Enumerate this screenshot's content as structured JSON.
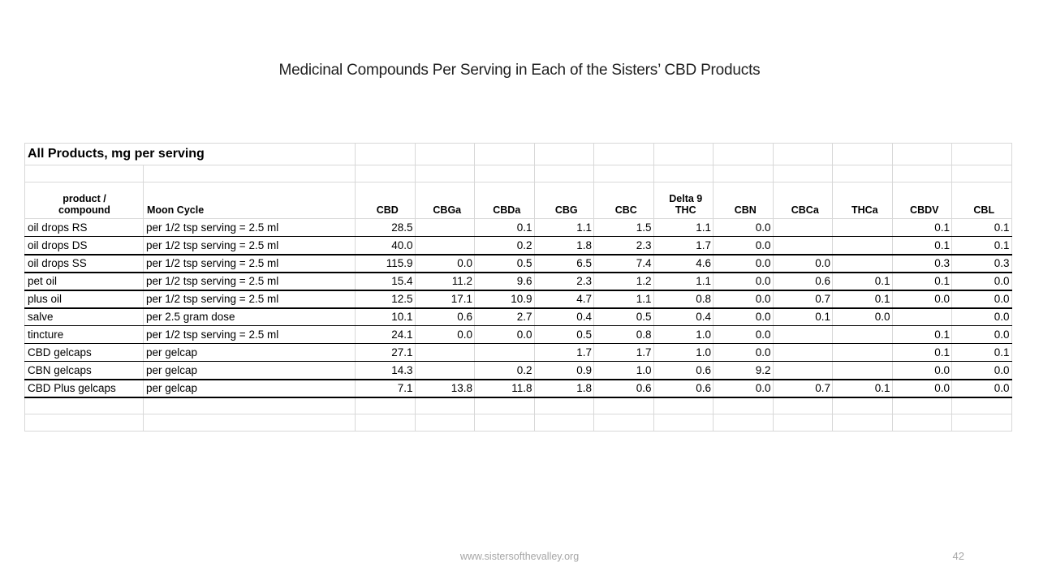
{
  "slide": {
    "title": "Medicinal Compounds Per Serving in Each of the Sisters’ CBD Products"
  },
  "table": {
    "block_title": "All Products, mg per serving",
    "product_header": "product /\ncompound",
    "moon_header": "Moon Cycle",
    "compounds": [
      "CBD",
      "CBGa",
      "CBDa",
      "CBG",
      "CBC",
      "Delta 9\nTHC",
      "CBN",
      "CBCa",
      "THCa",
      "CBDV",
      "CBL"
    ],
    "rows": [
      {
        "product": "oil drops RS",
        "serving": "per 1/2 tsp serving = 2.5 ml",
        "values": [
          "28.5",
          "",
          "0.1",
          "1.1",
          "1.5",
          "1.1",
          "0.0",
          "",
          "",
          "0.1",
          "0.1"
        ]
      },
      {
        "product": "oil drops DS",
        "serving": "per 1/2 tsp serving = 2.5 ml",
        "values": [
          "40.0",
          "",
          "0.2",
          "1.8",
          "2.3",
          "1.7",
          "0.0",
          "",
          "",
          "0.1",
          "0.1"
        ]
      },
      {
        "product": "oil drops SS",
        "serving": "per 1/2 tsp serving = 2.5 ml",
        "values": [
          "115.9",
          "0.0",
          "0.5",
          "6.5",
          "7.4",
          "4.6",
          "0.0",
          "0.0",
          "",
          "0.3",
          "0.3"
        ]
      },
      {
        "product": "pet oil",
        "serving": "per 1/2 tsp serving = 2.5 ml",
        "values": [
          "15.4",
          "11.2",
          "9.6",
          "2.3",
          "1.2",
          "1.1",
          "0.0",
          "0.6",
          "0.1",
          "0.1",
          "0.0"
        ]
      },
      {
        "product": "plus oil",
        "serving": "per 1/2 tsp serving = 2.5 ml",
        "values": [
          "12.5",
          "17.1",
          "10.9",
          "4.7",
          "1.1",
          "0.8",
          "0.0",
          "0.7",
          "0.1",
          "0.0",
          "0.0"
        ]
      },
      {
        "product": "salve",
        "serving": "per 2.5 gram dose",
        "values": [
          "10.1",
          "0.6",
          "2.7",
          "0.4",
          "0.5",
          "0.4",
          "0.0",
          "0.1",
          "0.0",
          "",
          "0.0"
        ]
      },
      {
        "product": "tincture",
        "serving": "per 1/2 tsp serving = 2.5 ml",
        "values": [
          "24.1",
          "0.0",
          "0.0",
          "0.5",
          "0.8",
          "1.0",
          "0.0",
          "",
          "",
          "0.1",
          "0.0"
        ]
      },
      {
        "product": "CBD gelcaps",
        "serving": "per gelcap",
        "values": [
          "27.1",
          "",
          "",
          "1.7",
          "1.7",
          "1.0",
          "0.0",
          "",
          "",
          "0.1",
          "0.1"
        ]
      },
      {
        "product": "CBN gelcaps",
        "serving": "per gelcap",
        "values": [
          "14.3",
          "",
          "0.2",
          "0.9",
          "1.0",
          "0.6",
          "9.2",
          "",
          "",
          "0.0",
          "0.0"
        ]
      },
      {
        "product": "CBD Plus gelcaps",
        "serving": "per gelcap",
        "values": [
          "7.1",
          "13.8",
          "11.8",
          "1.8",
          "0.6",
          "0.6",
          "0.0",
          "0.7",
          "0.1",
          "0.0",
          "0.0"
        ]
      }
    ]
  },
  "footer": {
    "website": "www.sistersofthevalley.org",
    "page_number": "42"
  },
  "colors": {
    "background": "#ffffff",
    "grid_line": "#d8d8d8",
    "data_border": "#000000",
    "text": "#000000",
    "footer_text": "#a6a6a6"
  }
}
